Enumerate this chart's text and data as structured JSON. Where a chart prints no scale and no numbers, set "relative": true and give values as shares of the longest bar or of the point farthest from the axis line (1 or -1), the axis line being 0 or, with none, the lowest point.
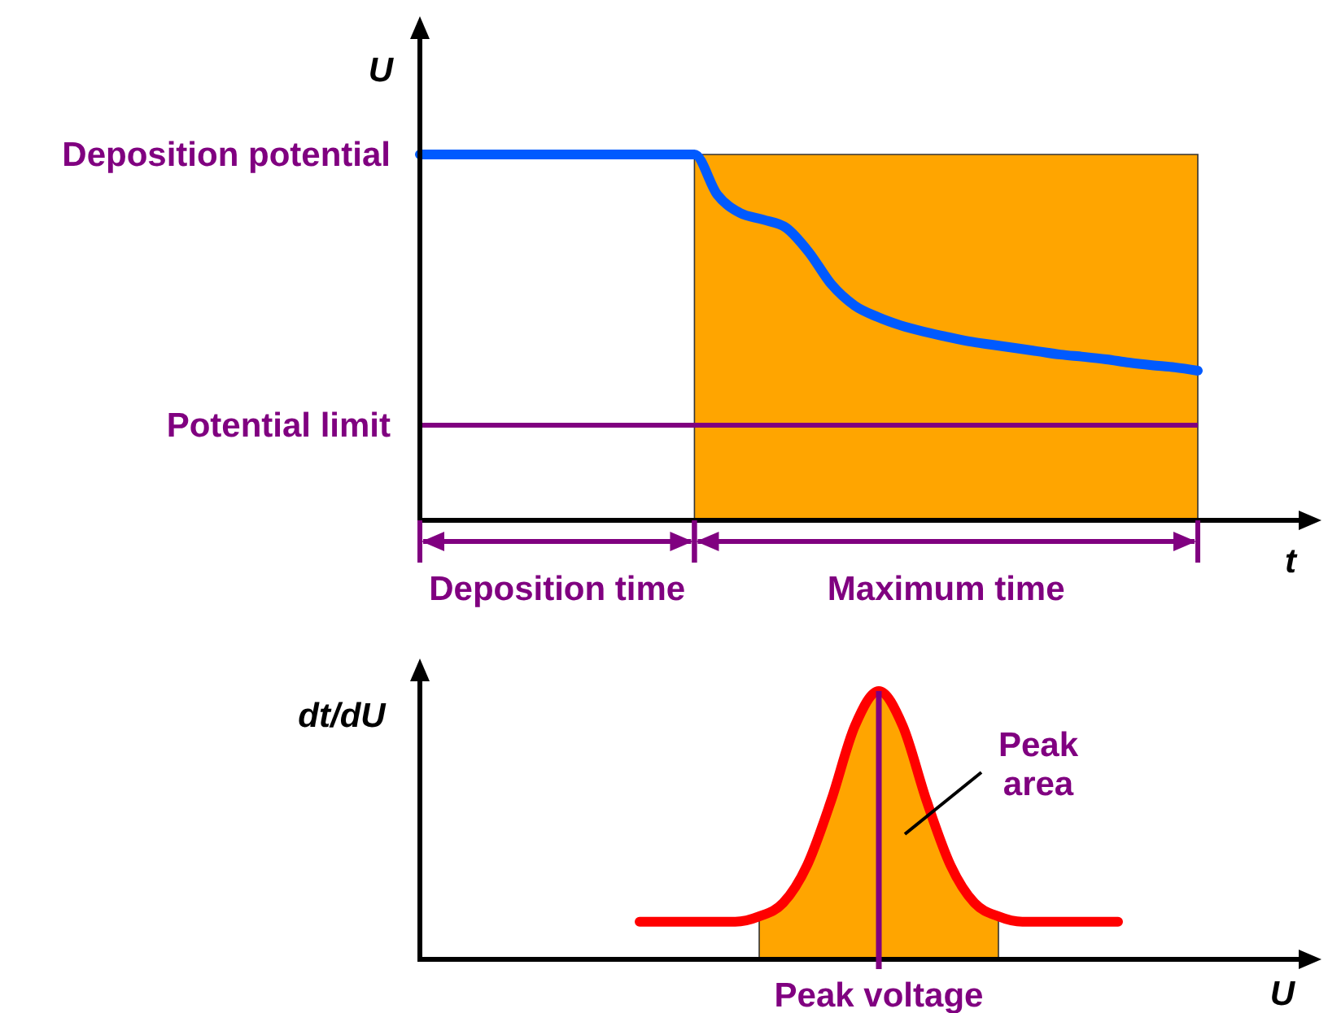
{
  "chart_data": [
    {
      "type": "line",
      "relative": true,
      "xlabel": "t",
      "ylabel": "U",
      "legend": false,
      "grid": false,
      "categories": [
        null,
        null,
        null,
        null,
        null,
        null,
        null,
        null,
        null,
        null,
        null,
        null,
        null,
        null,
        null,
        null,
        null,
        null,
        null,
        null,
        null,
        null,
        null,
        null,
        null,
        null,
        null,
        null,
        null,
        null,
        null,
        null,
        null,
        null,
        null
      ],
      "series": [
        {
          "type": "area",
          "color": "#ffa500",
          "values": [
            null,
            null,
            null,
            null,
            null,
            null,
            null,
            null,
            null,
            null,
            null,
            null,
            1,
            1,
            1,
            1,
            1,
            1,
            1,
            1,
            1,
            1,
            1,
            1,
            1,
            1,
            1,
            1,
            1,
            1,
            1,
            1,
            1,
            1,
            1
          ]
        },
        {
          "type": "line",
          "color": "#005aff",
          "values": [
            1,
            1,
            1,
            1,
            1,
            1,
            1,
            1,
            1,
            1,
            1,
            1,
            1,
            0.89,
            0.84,
            0.822,
            0.8,
            0.733,
            0.644,
            0.587,
            0.556,
            0.533,
            0.516,
            0.502,
            0.489,
            0.48,
            0.471,
            0.462,
            0.453,
            0.447,
            0.44,
            0.431,
            0.424,
            0.418,
            0.409
          ]
        }
      ],
      "ref_lines": [
        {
          "axis": "y",
          "value": 0.26,
          "label": "Potential limit",
          "color": "#800080"
        }
      ],
      "annotations": [
        "Deposition potential",
        "Deposition time",
        "Maximum time"
      ]
    },
    {
      "type": "line",
      "relative": true,
      "xlabel": "U",
      "ylabel": "dt/dU",
      "legend": false,
      "grid": false,
      "categories": [
        null,
        null,
        null,
        null,
        null,
        null,
        null,
        null,
        null,
        null,
        null,
        null,
        null,
        null,
        null,
        null,
        null,
        null,
        null,
        null,
        null
      ],
      "series": [
        {
          "type": "area",
          "color": "#ffa500",
          "values": [
            null,
            null,
            null,
            null,
            null,
            0.16,
            0.21,
            0.35,
            0.59,
            0.87,
            1,
            0.87,
            0.59,
            0.35,
            0.21,
            0.16,
            null,
            null,
            null,
            null,
            null
          ]
        },
        {
          "type": "line",
          "color": "#ff0000",
          "values": [
            0.14,
            0.14,
            0.14,
            0.14,
            0.14,
            0.16,
            0.21,
            0.35,
            0.59,
            0.87,
            1,
            0.87,
            0.59,
            0.35,
            0.21,
            0.16,
            0.14,
            0.14,
            0.14,
            0.14,
            0.14
          ]
        }
      ],
      "annotations": [
        "Peak voltage",
        "Peak area"
      ]
    }
  ]
}
